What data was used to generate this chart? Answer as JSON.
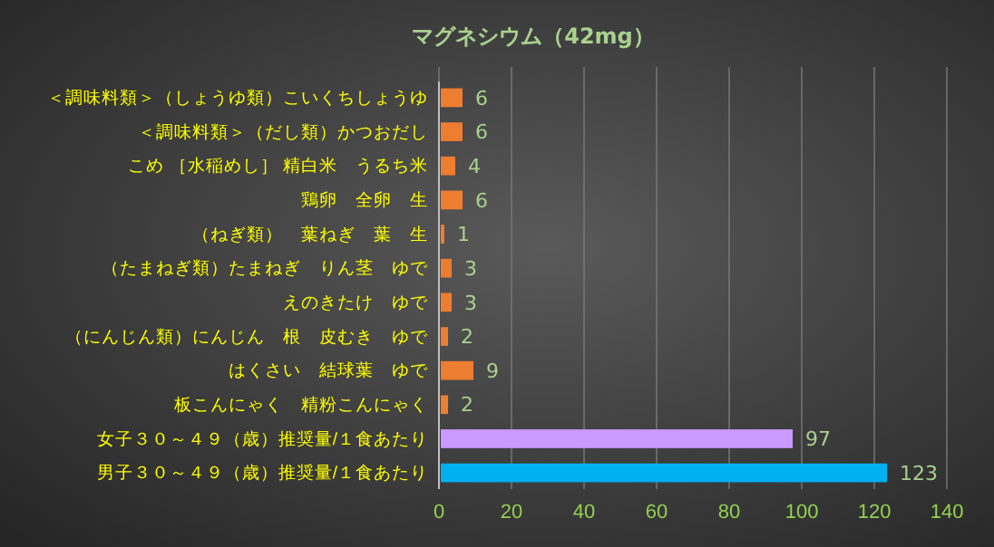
{
  "chart_data": {
    "type": "bar",
    "orientation": "horizontal",
    "title": "マグネシウム（42mg）",
    "categories": [
      "＜調味料類＞（しょうゆ類）こいくちしょうゆ",
      "＜調味料類＞（だし類）かつおだし",
      "こめ ［水稲めし］ 精白米　うるち米",
      "鶏卵　全卵　生",
      "（ねぎ類）　葉ねぎ　葉　生",
      "（たまねぎ類）たまねぎ　りん茎　ゆで",
      "えのきたけ　ゆで",
      "（にんじん類）にんじん　根　皮むき　ゆで",
      "はくさい　結球葉　ゆで",
      "板こんにゃく　精粉こんにゃく",
      "女子３０～４９（歳）推奨量/１食あたり",
      "男子３０～４９（歳）推奨量/１食あたり"
    ],
    "values": [
      6,
      6,
      4,
      6,
      1,
      3,
      3,
      2,
      9,
      2,
      97,
      123
    ],
    "colors": [
      "#ed7d31",
      "#ed7d31",
      "#ed7d31",
      "#ed7d31",
      "#ed7d31",
      "#ed7d31",
      "#ed7d31",
      "#ed7d31",
      "#ed7d31",
      "#ed7d31",
      "#cc99ff",
      "#00b0f0"
    ],
    "xlim": [
      0,
      140
    ],
    "xticks": [
      0,
      20,
      40,
      60,
      80,
      100,
      120,
      140
    ],
    "grid": "x",
    "data_labels": true
  }
}
